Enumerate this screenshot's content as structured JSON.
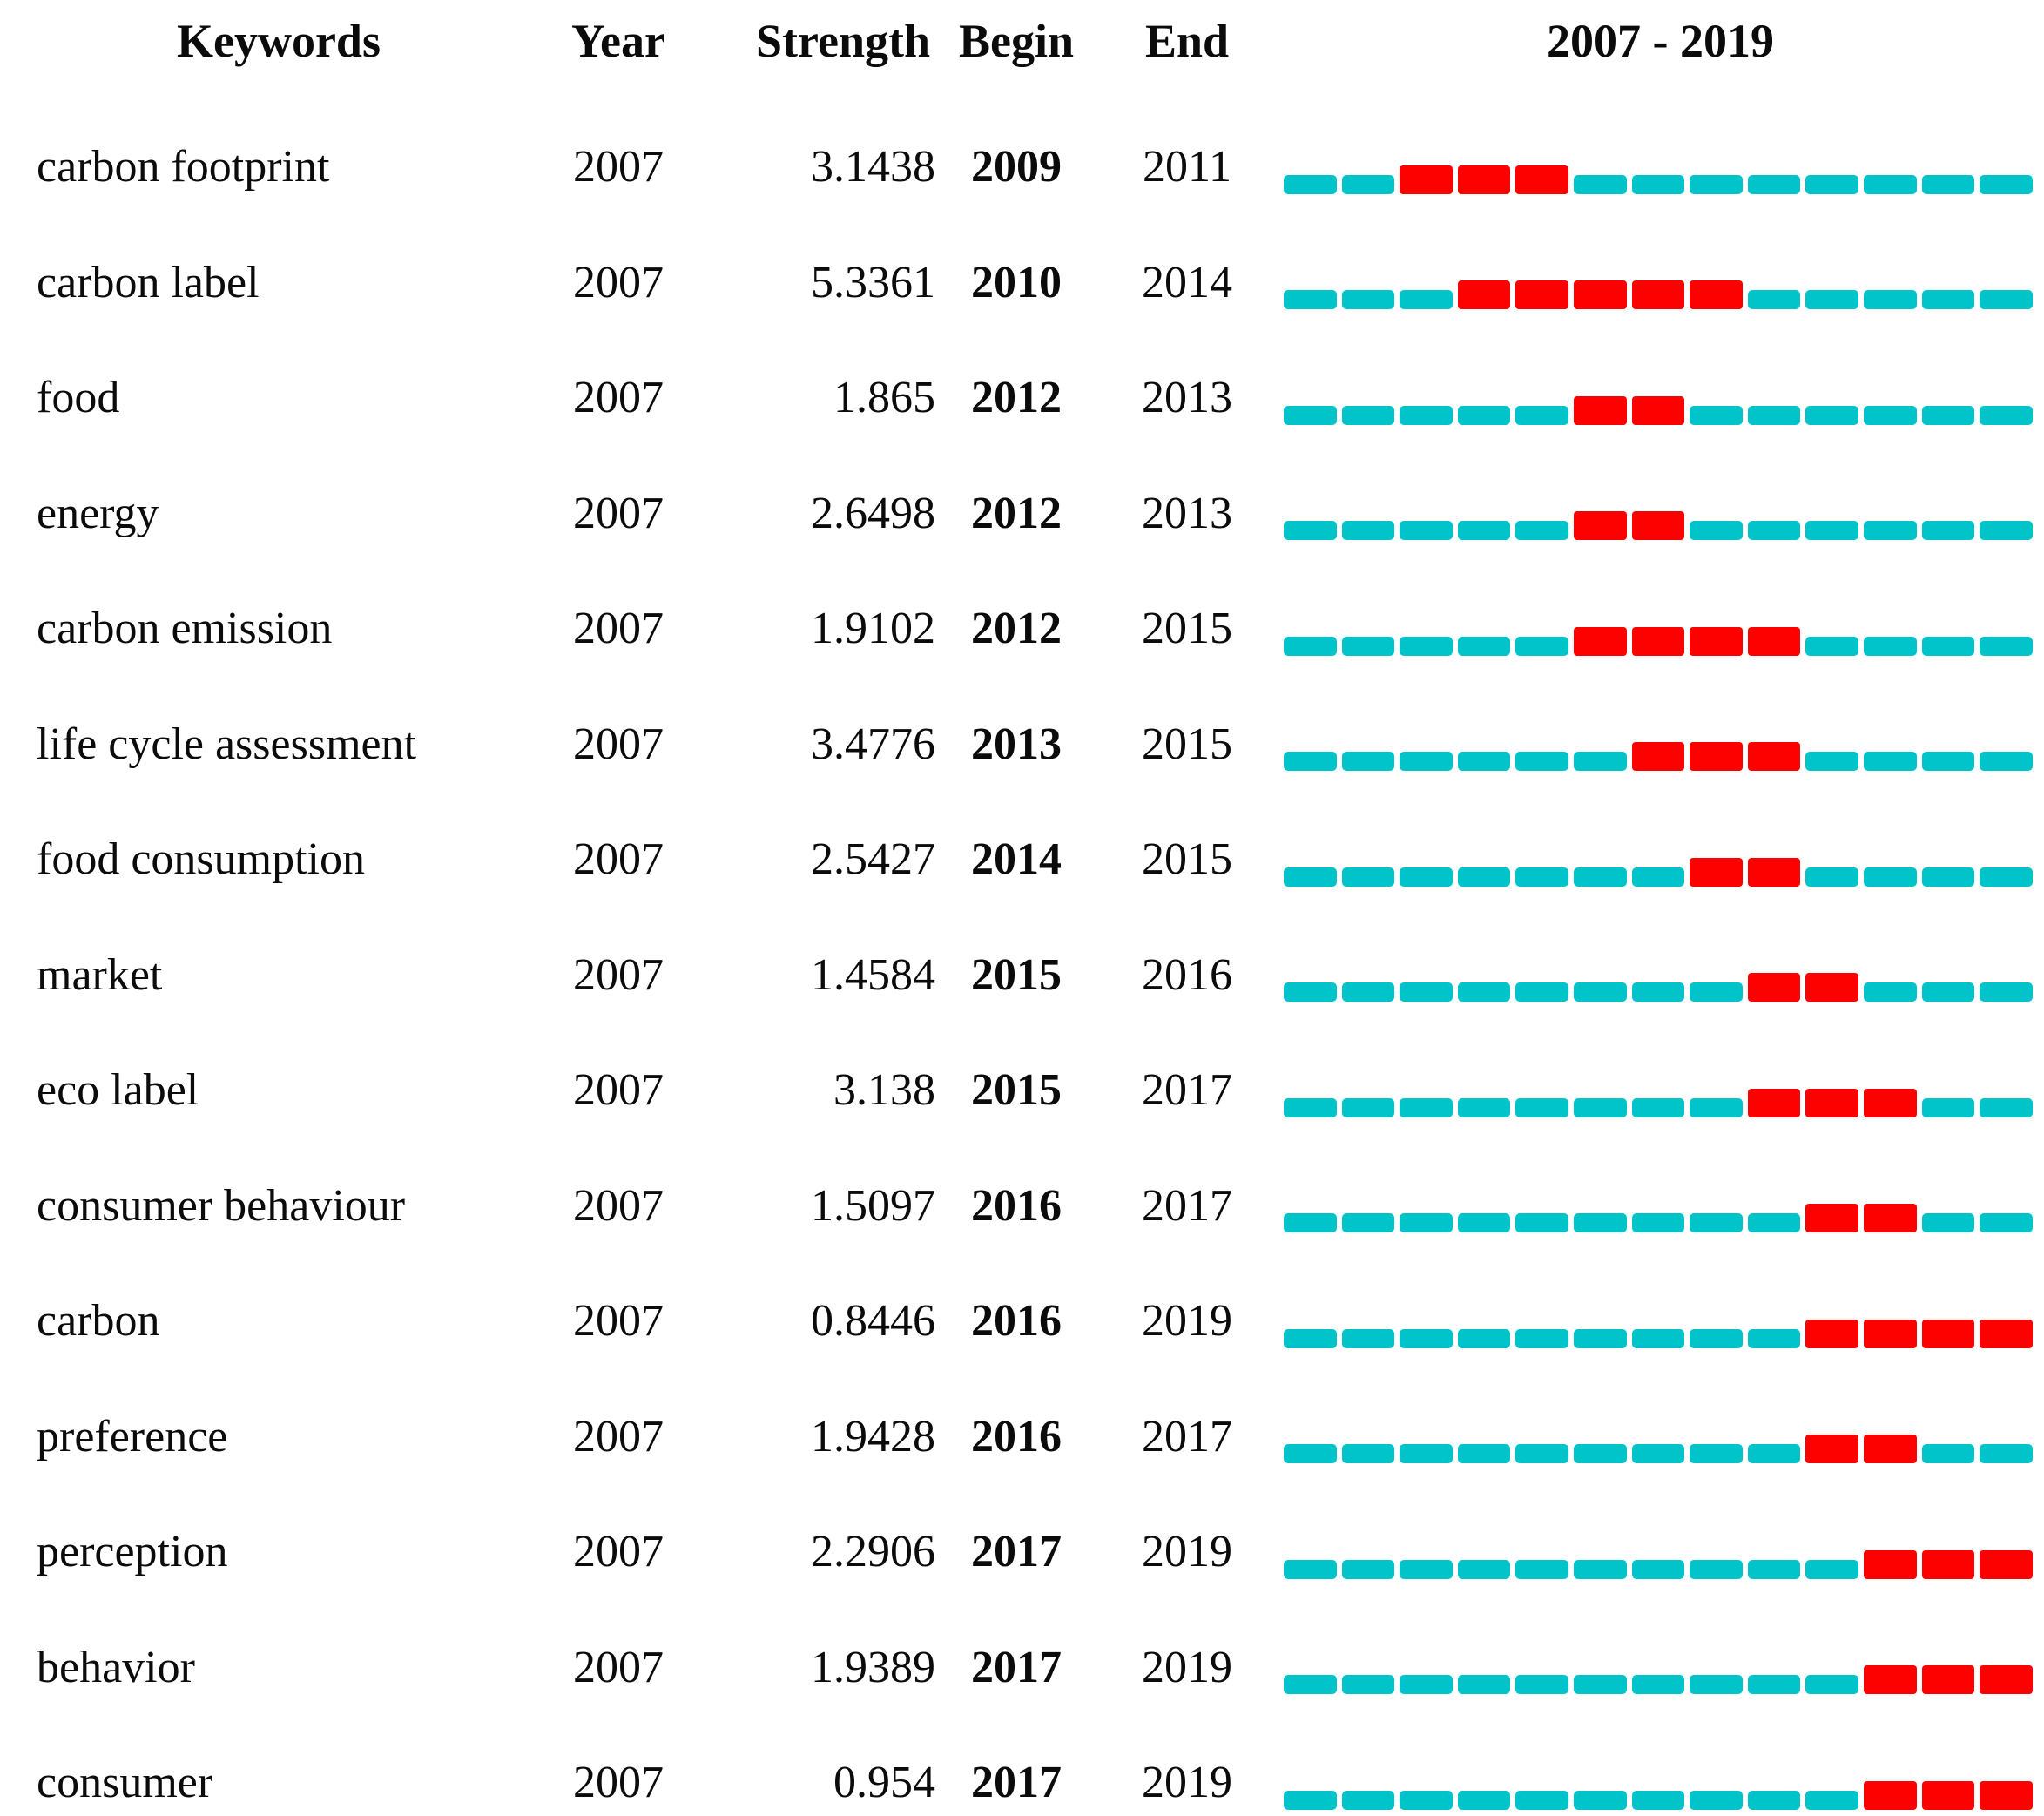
{
  "header": {
    "keywords": "Keywords",
    "year": "Year",
    "strength": "Strength",
    "begin": "Begin",
    "end": "End",
    "timeline": "2007 - 2019"
  },
  "timeline": {
    "start_year": 2007,
    "end_year": 2019,
    "segments": 13,
    "track_color": "#00C4CA",
    "burst_color": "#FD0000"
  },
  "rows": [
    {
      "keyword": "carbon footprint",
      "year": "2007",
      "strength": "3.1438",
      "begin": 2009,
      "end": 2011
    },
    {
      "keyword": "carbon label",
      "year": "2007",
      "strength": "5.3361",
      "begin": 2010,
      "end": 2014
    },
    {
      "keyword": "food",
      "year": "2007",
      "strength": "1.865",
      "begin": 2012,
      "end": 2013
    },
    {
      "keyword": "energy",
      "year": "2007",
      "strength": "2.6498",
      "begin": 2012,
      "end": 2013
    },
    {
      "keyword": "carbon emission",
      "year": "2007",
      "strength": "1.9102",
      "begin": 2012,
      "end": 2015
    },
    {
      "keyword": "life cycle assessment",
      "year": "2007",
      "strength": "3.4776",
      "begin": 2013,
      "end": 2015
    },
    {
      "keyword": "food consumption",
      "year": "2007",
      "strength": "2.5427",
      "begin": 2014,
      "end": 2015
    },
    {
      "keyword": "market",
      "year": "2007",
      "strength": "1.4584",
      "begin": 2015,
      "end": 2016
    },
    {
      "keyword": "eco label",
      "year": "2007",
      "strength": "3.138",
      "begin": 2015,
      "end": 2017
    },
    {
      "keyword": "consumer behaviour",
      "year": "2007",
      "strength": "1.5097",
      "begin": 2016,
      "end": 2017
    },
    {
      "keyword": "carbon",
      "year": "2007",
      "strength": "0.8446",
      "begin": 2016,
      "end": 2019
    },
    {
      "keyword": "preference",
      "year": "2007",
      "strength": "1.9428",
      "begin": 2016,
      "end": 2017
    },
    {
      "keyword": "perception",
      "year": "2007",
      "strength": "2.2906",
      "begin": 2017,
      "end": 2019
    },
    {
      "keyword": "behavior",
      "year": "2007",
      "strength": "1.9389",
      "begin": 2017,
      "end": 2019
    },
    {
      "keyword": "consumer",
      "year": "2007",
      "strength": "0.954",
      "begin": 2017,
      "end": 2019
    }
  ],
  "chart_data": {
    "type": "table",
    "title": "2007 - 2019",
    "columns": [
      "Keywords",
      "Year",
      "Strength",
      "Begin",
      "End",
      "2007 - 2019"
    ],
    "rows": [
      [
        "carbon footprint",
        2007,
        3.1438,
        2009,
        2011
      ],
      [
        "carbon label",
        2007,
        5.3361,
        2010,
        2014
      ],
      [
        "food",
        2007,
        1.865,
        2012,
        2013
      ],
      [
        "energy",
        2007,
        2.6498,
        2012,
        2013
      ],
      [
        "carbon emission",
        2007,
        1.9102,
        2012,
        2015
      ],
      [
        "life cycle assessment",
        2007,
        3.4776,
        2013,
        2015
      ],
      [
        "food consumption",
        2007,
        2.5427,
        2014,
        2015
      ],
      [
        "market",
        2007,
        1.4584,
        2015,
        2016
      ],
      [
        "eco label",
        2007,
        3.138,
        2015,
        2017
      ],
      [
        "consumer behaviour",
        2007,
        1.5097,
        2016,
        2017
      ],
      [
        "carbon",
        2007,
        0.8446,
        2016,
        2019
      ],
      [
        "preference",
        2007,
        1.9428,
        2016,
        2017
      ],
      [
        "perception",
        2007,
        2.2906,
        2017,
        2019
      ],
      [
        "behavior",
        2007,
        1.9389,
        2017,
        2019
      ],
      [
        "consumer",
        2007,
        0.954,
        2017,
        2019
      ]
    ],
    "timeline": {
      "axis_range": [
        2007,
        2019
      ],
      "segments_per_row": 13,
      "encoding": "red segments mark burst interval from Begin to End year inclusive; cyan segments mark non-burst years",
      "track_color": "#00C4CA",
      "burst_color": "#FD0000"
    },
    "legend_position": "none",
    "grid": false
  }
}
